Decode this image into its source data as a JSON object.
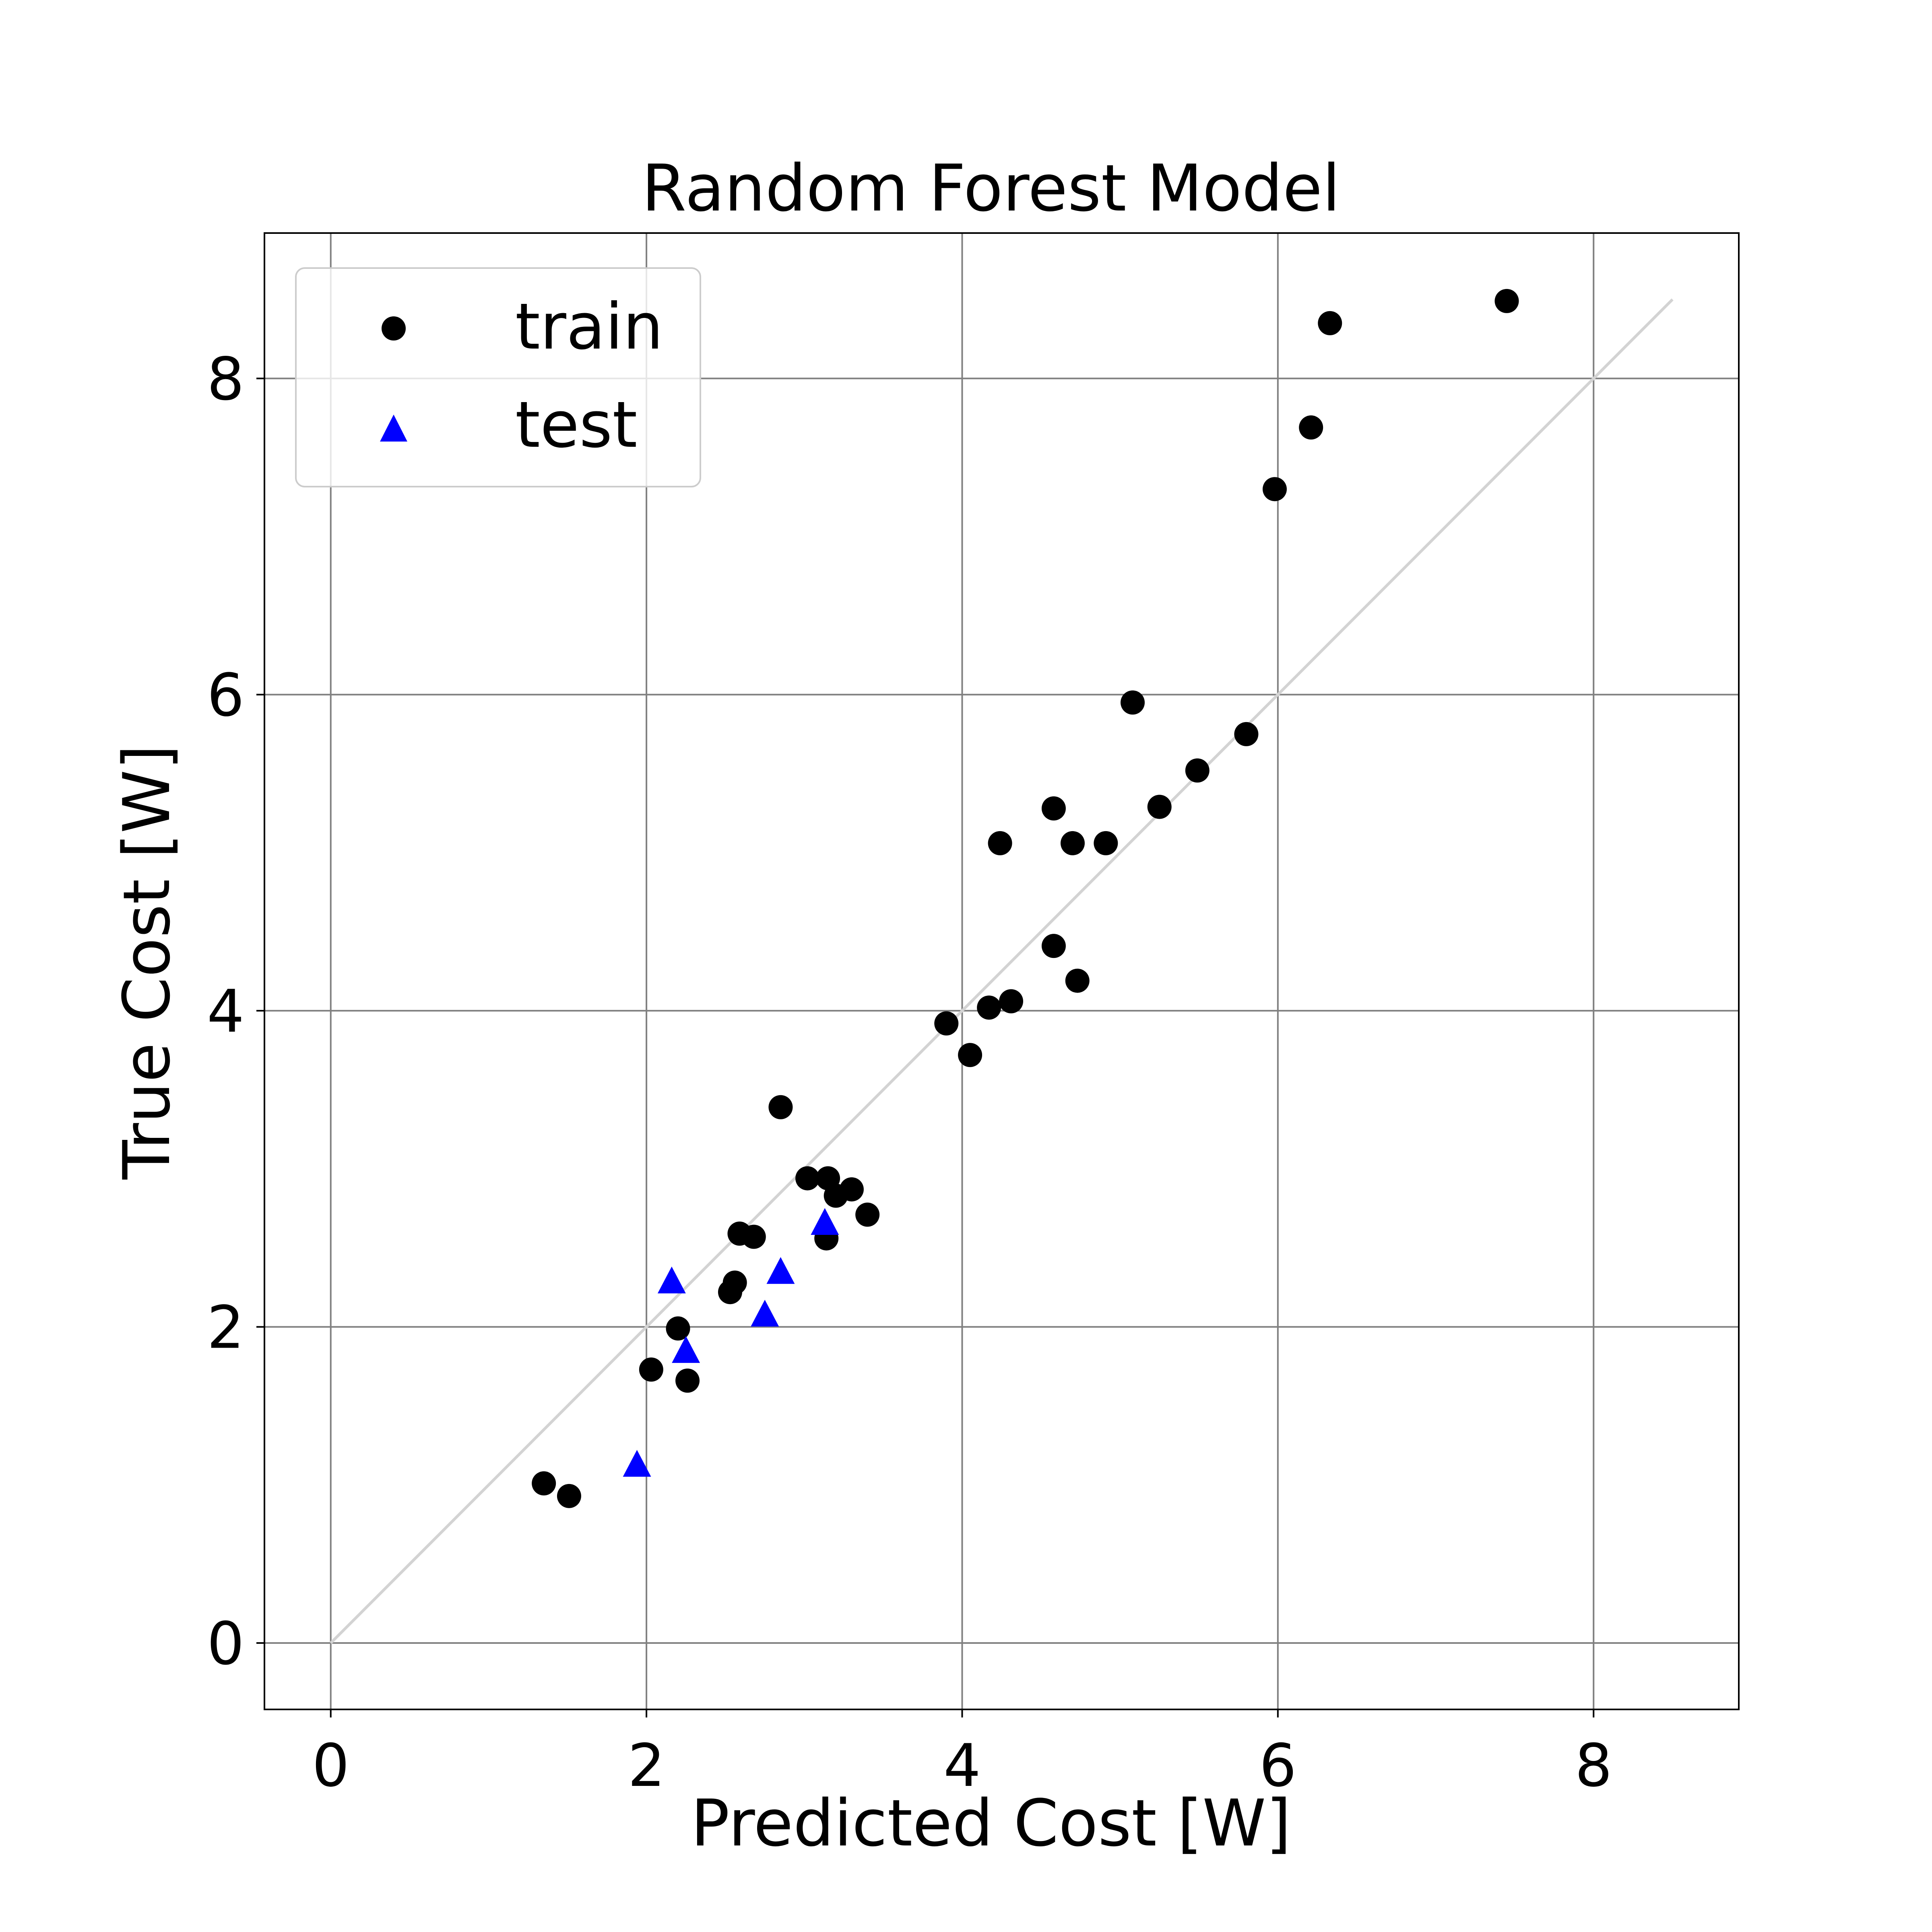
{
  "chart_data": {
    "type": "scatter",
    "title": "Random Forest Model",
    "xlabel": "Predicted Cost [W]",
    "ylabel": "True Cost [W]",
    "xlim": [
      -0.42,
      8.92
    ],
    "ylim": [
      -0.42,
      8.92
    ],
    "xticks": [
      0,
      2,
      4,
      6,
      8
    ],
    "yticks": [
      0,
      2,
      4,
      6,
      8
    ],
    "xtick_labels": [
      "0",
      "2",
      "4",
      "6",
      "8"
    ],
    "ytick_labels": [
      "0",
      "2",
      "4",
      "6",
      "8"
    ],
    "grid": true,
    "legend_position": "top-left",
    "reference_line": {
      "x": [
        0,
        8.5
      ],
      "y": [
        0,
        8.5
      ],
      "color": "#d3d3d3"
    },
    "series": [
      {
        "name": "train",
        "marker": "circle",
        "color": "#000000",
        "points": [
          [
            1.35,
            1.01
          ],
          [
            1.51,
            0.93
          ],
          [
            2.03,
            1.73
          ],
          [
            2.2,
            1.99
          ],
          [
            2.26,
            1.66
          ],
          [
            2.53,
            2.22
          ],
          [
            2.56,
            2.28
          ],
          [
            2.59,
            2.59
          ],
          [
            2.68,
            2.57
          ],
          [
            2.85,
            3.39
          ],
          [
            3.02,
            2.94
          ],
          [
            3.15,
            2.94
          ],
          [
            3.14,
            2.56
          ],
          [
            3.2,
            2.83
          ],
          [
            3.3,
            2.87
          ],
          [
            3.4,
            2.71
          ],
          [
            3.9,
            3.92
          ],
          [
            4.05,
            3.72
          ],
          [
            4.17,
            4.02
          ],
          [
            4.24,
            5.06
          ],
          [
            4.31,
            4.06
          ],
          [
            4.58,
            4.41
          ],
          [
            4.58,
            5.28
          ],
          [
            4.7,
            5.06
          ],
          [
            4.73,
            4.19
          ],
          [
            4.91,
            5.06
          ],
          [
            5.08,
            5.95
          ],
          [
            5.25,
            5.29
          ],
          [
            5.49,
            5.52
          ],
          [
            5.8,
            5.75
          ],
          [
            5.98,
            7.3
          ],
          [
            6.21,
            7.69
          ],
          [
            6.33,
            8.35
          ],
          [
            7.45,
            8.49
          ]
        ]
      },
      {
        "name": "test",
        "marker": "triangle",
        "color": "#0000ff",
        "points": [
          [
            1.94,
            1.13
          ],
          [
            2.16,
            2.29
          ],
          [
            2.25,
            1.85
          ],
          [
            2.75,
            2.08
          ],
          [
            2.85,
            2.35
          ],
          [
            3.13,
            2.66
          ]
        ]
      }
    ]
  }
}
